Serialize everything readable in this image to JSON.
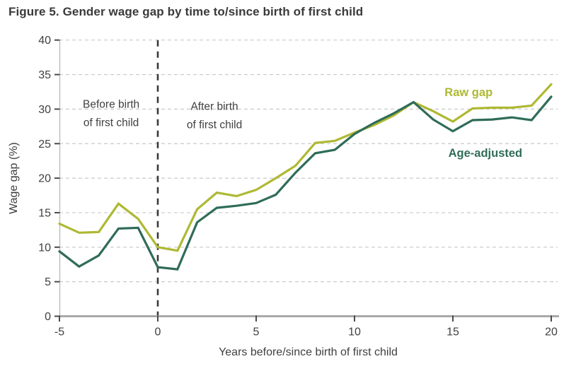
{
  "title": "Figure 5. Gender wage gap by time to/since birth of first child",
  "colors": {
    "raw_gap": "#aeb933",
    "age_adjusted": "#2f6c59",
    "grid": "#c9c9c9",
    "axis_line": "#a9a9a9",
    "left_axis_line": "#b9b9b9",
    "tick": "#4a4a4a",
    "text": "#404040",
    "vline": "#3a3a3a",
    "background": "#ffffff"
  },
  "chart_data": {
    "type": "line",
    "title": "Figure 5. Gender wage gap by time to/since birth of first child",
    "xlabel": "Years before/since birth of first child",
    "ylabel": "Wage gap (%)",
    "xlim": [
      -5,
      20
    ],
    "ylim": [
      0,
      40
    ],
    "x_ticks": [
      -5,
      0,
      5,
      10,
      15,
      20
    ],
    "y_ticks": [
      0,
      5,
      10,
      15,
      20,
      25,
      30,
      35,
      40
    ],
    "grid": "horizontal-dashed",
    "legend_position": "inline-labels",
    "x": [
      -5,
      -4,
      -3,
      -2,
      -1,
      0,
      1,
      2,
      3,
      4,
      5,
      6,
      7,
      8,
      9,
      10,
      11,
      12,
      13,
      14,
      15,
      16,
      17,
      18,
      19,
      20
    ],
    "series": [
      {
        "name": "Raw gap",
        "color": "#aeb933",
        "values": [
          13.4,
          12.1,
          12.2,
          16.3,
          14.1,
          10.0,
          9.5,
          15.5,
          17.9,
          17.4,
          18.3,
          20.0,
          21.8,
          25.1,
          25.4,
          26.6,
          27.7,
          29.1,
          31.0,
          29.7,
          28.2,
          30.1,
          30.2,
          30.2,
          30.5,
          33.6
        ]
      },
      {
        "name": "Age-adjusted",
        "color": "#2f6c59",
        "values": [
          9.4,
          7.2,
          8.8,
          12.7,
          12.8,
          7.1,
          6.8,
          13.6,
          15.7,
          16.0,
          16.4,
          17.6,
          20.8,
          23.6,
          24.1,
          26.4,
          28.0,
          29.4,
          31.0,
          28.5,
          26.8,
          28.4,
          28.5,
          28.8,
          28.4,
          31.8
        ]
      }
    ],
    "vline": {
      "x": 0,
      "style": "dashed",
      "color": "#3a3a3a"
    },
    "annotations": [
      {
        "id": "before-birth-label",
        "text": "Before birth\nof first child",
        "x": -2.37,
        "y": 30.2,
        "color": "#404040",
        "bold": false
      },
      {
        "id": "after-birth-label",
        "text": "After birth\nof first child",
        "x": 2.88,
        "y": 29.9,
        "color": "#404040",
        "bold": false
      },
      {
        "id": "raw-gap-label",
        "text": "Raw gap",
        "x": 15.8,
        "y": 31.9,
        "color": "#aeb933",
        "bold": true
      },
      {
        "id": "age-adjusted-label",
        "text": "Age-adjusted",
        "x": 16.65,
        "y": 23.1,
        "color": "#2f6c59",
        "bold": true
      }
    ]
  }
}
